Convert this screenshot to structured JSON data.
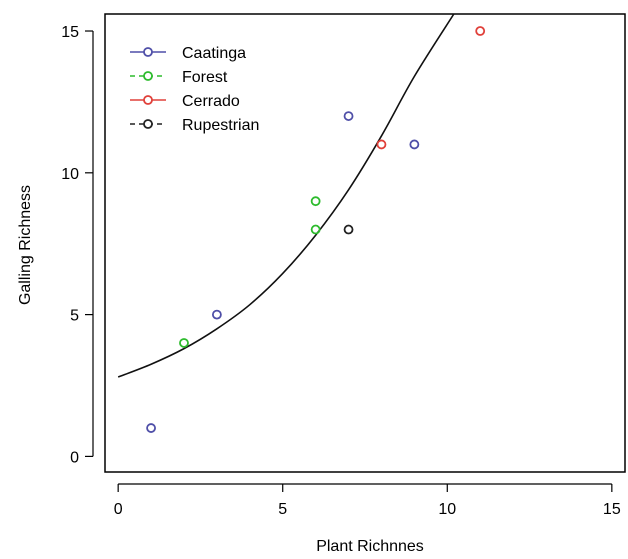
{
  "chart_data": {
    "type": "scatter",
    "title": "",
    "xlabel": "Plant Richnnes",
    "ylabel": "Galling Richness",
    "xlim": [
      -0.4,
      15.4
    ],
    "ylim": [
      -0.55,
      15.6
    ],
    "xticks": [
      0,
      5,
      10,
      15
    ],
    "yticks": [
      0,
      5,
      10,
      15
    ],
    "grid": false,
    "legend_position": "top-left",
    "series": [
      {
        "name": "Caatinga",
        "color": "#4f4fa8",
        "marker": "open-circle",
        "points": [
          [
            1,
            1
          ],
          [
            3,
            5
          ],
          [
            7,
            12
          ],
          [
            9,
            11
          ]
        ]
      },
      {
        "name": "Forest",
        "color": "#2dbb2d",
        "marker": "open-circle",
        "points": [
          [
            2,
            4
          ],
          [
            6,
            9
          ],
          [
            6,
            8
          ]
        ]
      },
      {
        "name": "Cerrado",
        "color": "#e0403a",
        "marker": "open-circle",
        "points": [
          [
            8,
            11
          ],
          [
            11,
            15
          ]
        ]
      },
      {
        "name": "Rupestrian",
        "color": "#222222",
        "marker": "open-circle",
        "points": [
          [
            7,
            8
          ]
        ]
      }
    ],
    "fit_curve": {
      "color": "#111111",
      "points": [
        [
          0,
          2.8
        ],
        [
          1,
          3.25
        ],
        [
          2,
          3.8
        ],
        [
          3,
          4.5
        ],
        [
          4,
          5.35
        ],
        [
          5,
          6.45
        ],
        [
          6,
          7.8
        ],
        [
          7,
          9.4
        ],
        [
          8,
          11.3
        ],
        [
          9,
          13.4
        ],
        [
          10.2,
          15.6
        ]
      ]
    }
  }
}
